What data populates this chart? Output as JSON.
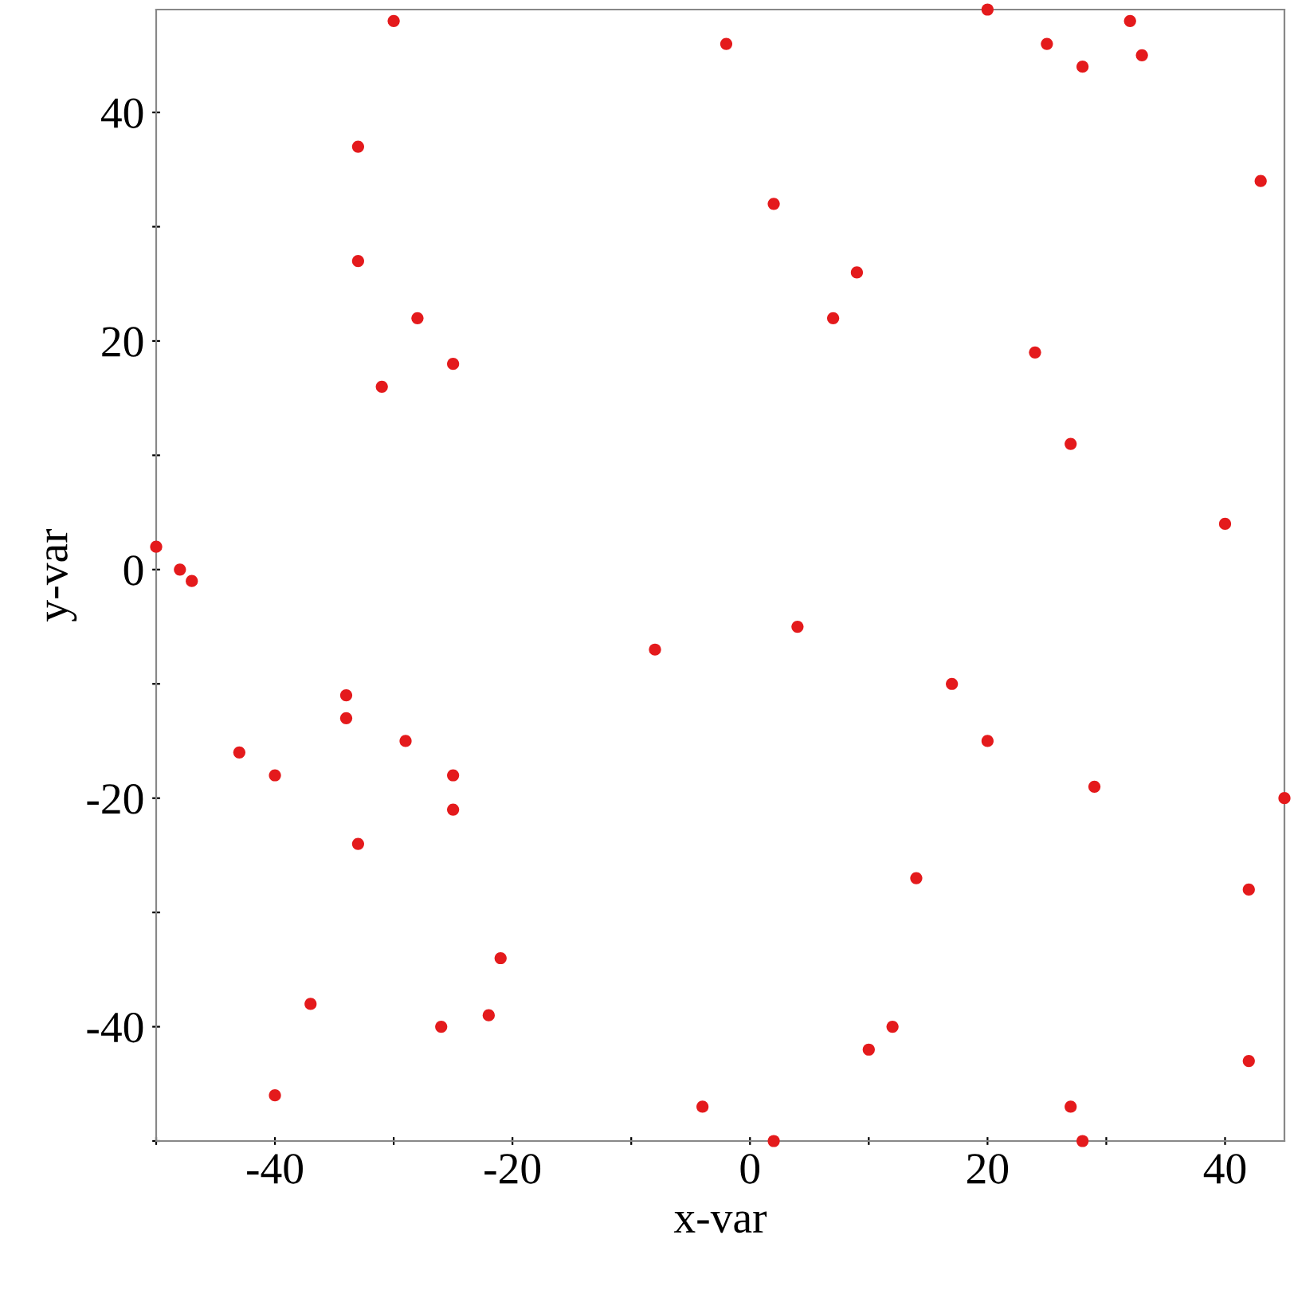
{
  "chart_data": {
    "type": "scatter",
    "xlabel": "x-var",
    "ylabel": "y-var",
    "x": [
      -50,
      -48,
      -47,
      -30,
      -33,
      -33,
      -28,
      -31,
      -25,
      -2,
      2,
      9,
      7,
      20,
      25,
      28,
      32,
      33,
      43,
      24,
      27,
      40,
      -8,
      4,
      17,
      20,
      29,
      45,
      -34,
      -34,
      -43,
      -40,
      -29,
      -25,
      -25,
      -33,
      14,
      42,
      -21,
      -37,
      -22,
      -26,
      12,
      10,
      42,
      -40,
      -4,
      27,
      2,
      28
    ],
    "series": [
      {
        "color": "#e41a1c",
        "values": [
          2,
          0,
          -1,
          48,
          37,
          27,
          22,
          16,
          18,
          46,
          32,
          26,
          22,
          49,
          46,
          44,
          48,
          45,
          34,
          19,
          11,
          4,
          -7,
          -5,
          -10,
          -15,
          -19,
          -20,
          -11,
          -13,
          -16,
          -18,
          -15,
          -18,
          -21,
          -24,
          -27,
          -28,
          -34,
          -38,
          -39,
          -40,
          -40,
          -42,
          -43,
          -46,
          -47,
          -47,
          -50,
          -50
        ]
      }
    ],
    "xlim": [
      -50,
      45
    ],
    "ylim": [
      -50,
      49
    ],
    "xticks": [
      {
        "value": -50,
        "label": null
      },
      -40,
      {
        "value": -30,
        "label": null
      },
      -20,
      {
        "value": -10,
        "label": null
      },
      0,
      {
        "value": 10,
        "label": null
      },
      20,
      {
        "value": 30,
        "label": null
      },
      40
    ],
    "yticks": [
      {
        "value": -50,
        "label": null
      },
      -40,
      {
        "value": -30,
        "label": null
      },
      -20,
      {
        "value": -10,
        "label": null
      },
      0,
      {
        "value": 10,
        "label": null
      },
      20,
      {
        "value": 30,
        "label": null
      },
      40
    ],
    "grid": false,
    "marker": "circle"
  }
}
